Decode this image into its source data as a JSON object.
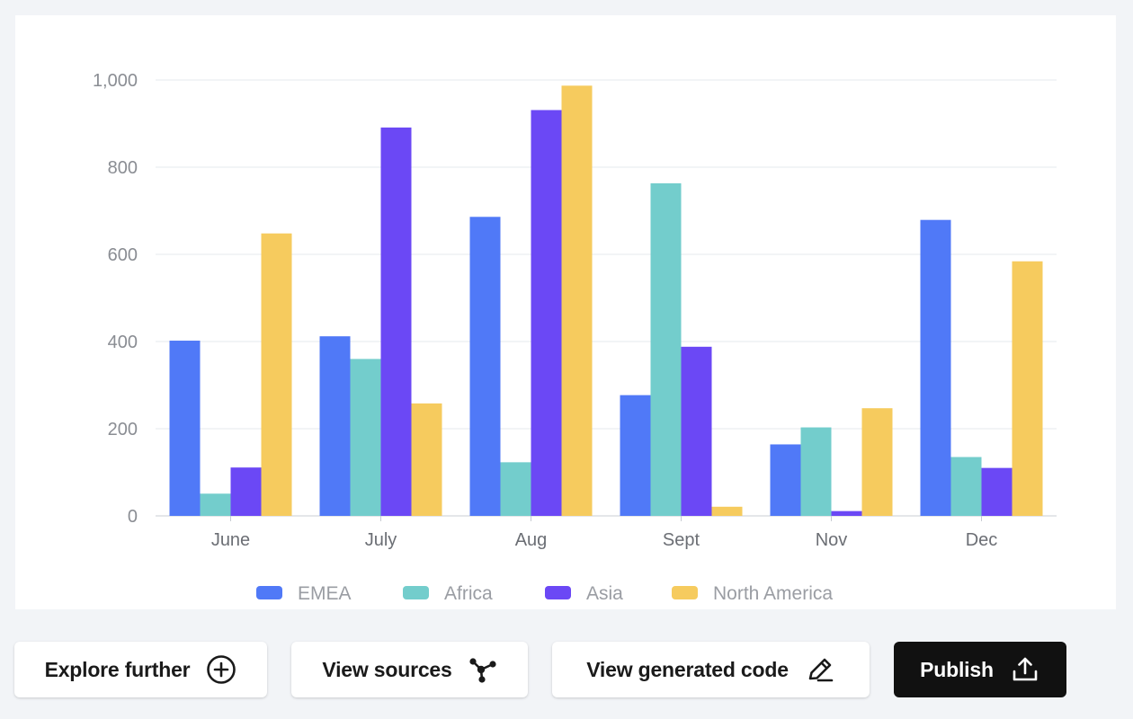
{
  "chart_data": {
    "type": "bar",
    "title": "",
    "xlabel": "",
    "ylabel": "",
    "ylim": [
      0,
      1000
    ],
    "yticks": [
      0,
      200,
      400,
      600,
      800,
      1000
    ],
    "ytick_labels": [
      "0",
      "200",
      "400",
      "600",
      "800",
      "1,000"
    ],
    "categories": [
      "June",
      "July",
      "Aug",
      "Sept",
      "Nov",
      "Dec"
    ],
    "grid": true,
    "legend_position": "bottom",
    "series": [
      {
        "name": "EMEA",
        "color": "#5079f7",
        "values": [
          402,
          412,
          686,
          277,
          164,
          679
        ]
      },
      {
        "name": "Africa",
        "color": "#73cdcc",
        "values": [
          51,
          360,
          123,
          763,
          203,
          135
        ]
      },
      {
        "name": "Asia",
        "color": "#6b48f5",
        "values": [
          111,
          891,
          931,
          388,
          11,
          110
        ]
      },
      {
        "name": "North America",
        "color": "#f6cb5e",
        "values": [
          648,
          258,
          987,
          21,
          247,
          584
        ]
      }
    ]
  },
  "actions": {
    "explore_label": "Explore further",
    "sources_label": "View sources",
    "code_label": "View generated code",
    "publish_label": "Publish"
  }
}
